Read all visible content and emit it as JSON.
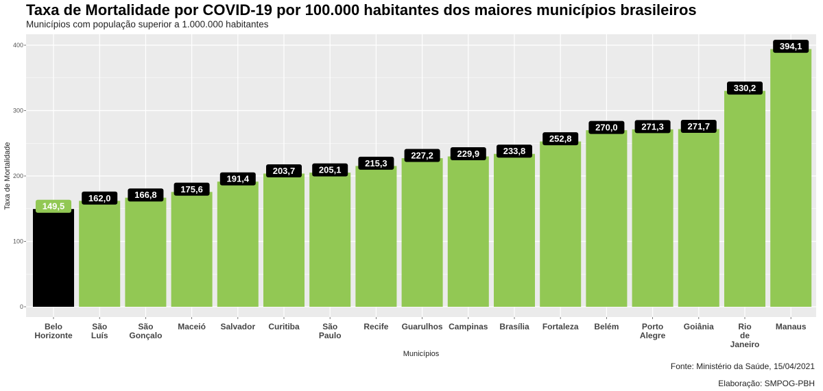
{
  "chart_data": {
    "type": "bar",
    "title": "Taxa de Mortalidade por COVID-19 por 100.000 habitantes dos maiores municípios brasileiros",
    "subtitle": "Municípios com população superior a 1.000.000 habitantes",
    "xlabel": "Municípios",
    "ylabel": "Taxa de Mortalidade",
    "ylim": [
      0,
      410
    ],
    "yticks": [
      0,
      100,
      200,
      300,
      400
    ],
    "grid": true,
    "categories": [
      [
        "Belo",
        "Horizonte"
      ],
      [
        "São",
        "Luís"
      ],
      [
        "São",
        "Gonçalo"
      ],
      [
        "Maceió"
      ],
      [
        "Salvador"
      ],
      [
        "Curitiba"
      ],
      [
        "São",
        "Paulo"
      ],
      [
        "Recife"
      ],
      [
        "Guarulhos"
      ],
      [
        "Campinas"
      ],
      [
        "Brasília"
      ],
      [
        "Fortaleza"
      ],
      [
        "Belém"
      ],
      [
        "Porto",
        "Alegre"
      ],
      [
        "Goiânia"
      ],
      [
        "Rio",
        "de",
        "Janeiro"
      ],
      [
        "Manaus"
      ]
    ],
    "values": [
      149.5,
      162.0,
      166.8,
      175.6,
      191.4,
      203.7,
      205.1,
      215.3,
      227.2,
      229.9,
      233.8,
      252.8,
      270.0,
      271.3,
      271.7,
      330.2,
      394.1
    ],
    "value_labels": [
      "149,5",
      "162,0",
      "166,8",
      "175,6",
      "191,4",
      "203,7",
      "205,1",
      "215,3",
      "227,2",
      "229,9",
      "233,8",
      "252,8",
      "270,0",
      "271,3",
      "271,7",
      "330,2",
      "394,1"
    ],
    "highlight_index": 0,
    "colors": {
      "bar": "#92c854",
      "highlight_bar": "#000000",
      "label_bg": "#000000",
      "highlight_label_bg": "#92c854",
      "panel": "#ebebeb",
      "grid": "#ffffff"
    }
  },
  "footer": {
    "source": "Fonte: Ministério da Saúde, 15/04/2021",
    "credit": "Elaboração: SMPOG-PBH"
  }
}
